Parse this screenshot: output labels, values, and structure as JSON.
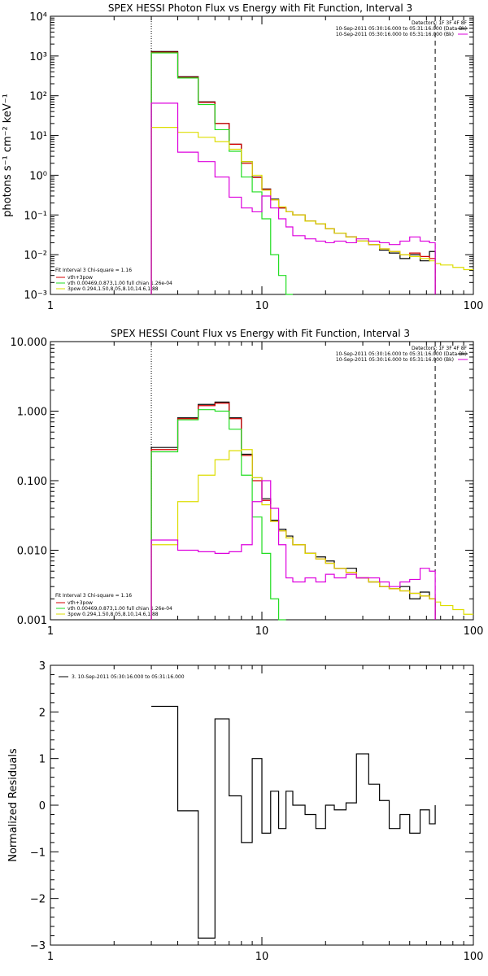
{
  "chart_data": [
    {
      "type": "line",
      "title": "SPEX HESSI Photon Flux vs Energy with Fit Function, Interval 3",
      "xlabel": "",
      "ylabel": "photons s⁻¹ cm⁻² keV⁻¹",
      "xscale": "log",
      "yscale": "log",
      "xlim": [
        1,
        100
      ],
      "ylim": [
        0.001,
        10000
      ],
      "x_ticks": [
        "1",
        "10",
        "100"
      ],
      "y_ticks": [
        "10⁻³",
        "10⁻²",
        "10⁻¹",
        "10⁰",
        "10¹",
        "10²",
        "10³",
        "10⁴"
      ],
      "vlines": [
        {
          "x": 3.0,
          "style": "dotted"
        },
        {
          "x": 66,
          "style": "dashed"
        }
      ],
      "legend_top_right": [
        "Detectors: 1F 3F 4F 8F",
        "10-Sep-2011 05:30:16.000 to 05:31:16.000 (Data-Bk)",
        "10-Sep-2011 05:30:16.000 to 05:31:16.000 (Bk)"
      ],
      "legend_bottom_left": [
        "Fit Interval 3   Chi-square = 1.16",
        "vth+3pow",
        "vth 0.00469,0.873,1.00  full chian 1.26e-04",
        "3pow 0.294,1.50,8.05,8.10,14.6,1.88"
      ],
      "bin_edges": [
        3.0,
        4.0,
        5.0,
        6.0,
        7.0,
        8.0,
        9.0,
        10.0,
        11.0,
        12.0,
        13.0,
        14.0,
        16.0,
        18.0,
        20.0,
        22.0,
        25.0,
        28.0,
        32.0,
        36.0,
        40.0,
        45.0,
        50.0,
        56.0,
        62.0,
        66.0,
        70.0,
        80.0,
        90.0,
        100.0
      ],
      "series": [
        {
          "name": "10-Sep-2011 05:30:16.000 to 05:31:16.000 (Data-Bk)",
          "color": "#000000",
          "values": [
            1300,
            300,
            70,
            20,
            6,
            2.2,
            0.9,
            0.45,
            0.25,
            0.15,
            0.12,
            0.1,
            0.07,
            0.06,
            0.045,
            0.035,
            0.028,
            0.022,
            0.018,
            0.013,
            0.011,
            0.008,
            0.01,
            0.007,
            0.012
          ]
        },
        {
          "name": "vth+3pow",
          "color": "#d40000",
          "values": [
            1250,
            290,
            68,
            20,
            6,
            2.0,
            0.88,
            0.44,
            0.24,
            0.15,
            0.12,
            0.1,
            0.07,
            0.06,
            0.045,
            0.035,
            0.028,
            0.022,
            0.018,
            0.014,
            0.012,
            0.01,
            0.011,
            0.009,
            0.008
          ]
        },
        {
          "name": "vth 0.00469,0.873,1.00  full chian 1.26e-04",
          "color": "#22dd22",
          "values": [
            1200,
            280,
            60,
            14,
            4,
            0.9,
            0.38,
            0.08,
            0.01,
            0.003,
            0.0008
          ]
        },
        {
          "name": "3pow 0.294,1.50,8.05,8.10,14.6,1.88",
          "color": "#dddd00",
          "values": [
            16,
            12,
            9,
            7,
            4.5,
            2.2,
            1.0,
            0.42,
            0.24,
            0.16,
            0.12,
            0.1,
            0.07,
            0.06,
            0.045,
            0.035,
            0.028,
            0.022,
            0.018,
            0.014,
            0.012,
            0.01,
            0.009,
            0.008,
            0.007,
            0.006,
            0.0055,
            0.0048,
            0.0042
          ]
        },
        {
          "name": "10-Sep-2011 05:30:16.000 to 05:31:16.000 (Bk)",
          "color": "#dd00dd",
          "values": [
            65,
            3.8,
            2.2,
            0.9,
            0.28,
            0.15,
            0.12,
            0.3,
            0.15,
            0.08,
            0.05,
            0.03,
            0.025,
            0.022,
            0.02,
            0.022,
            0.02,
            0.025,
            0.022,
            0.02,
            0.018,
            0.022,
            0.028,
            0.022,
            0.02
          ]
        }
      ]
    },
    {
      "type": "line",
      "title": "SPEX HESSI Count Flux vs Energy with Fit Function, Interval 3",
      "xlabel": "",
      "ylabel": "",
      "xscale": "log",
      "yscale": "log",
      "xlim": [
        1,
        100
      ],
      "ylim": [
        0.001,
        10
      ],
      "x_ticks": [
        "1",
        "10",
        "100"
      ],
      "y_ticks": [
        "0.001",
        "0.010",
        "0.100",
        "1.000",
        "10.000"
      ],
      "vlines": [
        {
          "x": 3.0,
          "style": "dotted"
        },
        {
          "x": 66,
          "style": "dashed"
        }
      ],
      "legend_top_right": [
        "Detectors: 1F 3F 4F 8F",
        "10-Sep-2011 05:30:16.000 to 05:31:16.000 (Data-Bk)",
        "10-Sep-2011 05:30:16.000 to 05:31:16.000 (Bk)"
      ],
      "legend_bottom_left": [
        "Fit Interval 3   Chi-square = 1.16",
        "vth+3pow",
        "vth 0.00469,0.873,1.00  full chian 1.26e-04",
        "3pow 0.294,1.50,8.05,8.10,14.6,1.88"
      ],
      "bin_edges": [
        3.0,
        4.0,
        5.0,
        6.0,
        7.0,
        8.0,
        9.0,
        10.0,
        11.0,
        12.0,
        13.0,
        14.0,
        16.0,
        18.0,
        20.0,
        22.0,
        25.0,
        28.0,
        32.0,
        36.0,
        40.0,
        45.0,
        50.0,
        56.0,
        62.0,
        66.0,
        70.0,
        80.0,
        90.0,
        100.0
      ],
      "series": [
        {
          "name": "10-Sep-2011 05:30:16.000 to 05:31:16.000 (Data-Bk)",
          "color": "#000000",
          "values": [
            0.3,
            0.8,
            1.25,
            1.35,
            0.8,
            0.24,
            0.11,
            0.055,
            0.027,
            0.02,
            0.016,
            0.012,
            0.009,
            0.008,
            0.007,
            0.0055,
            0.0055,
            0.004,
            0.0035,
            0.003,
            0.0028,
            0.003,
            0.002,
            0.0025,
            0.002
          ]
        },
        {
          "name": "vth+3pow",
          "color": "#d40000",
          "values": [
            0.28,
            0.78,
            1.2,
            1.3,
            0.78,
            0.23,
            0.1,
            0.052,
            0.026,
            0.019,
            0.015,
            0.012,
            0.009,
            0.0075,
            0.0065,
            0.0055,
            0.0048,
            0.004,
            0.0035,
            0.003,
            0.0028,
            0.0026,
            0.0024,
            0.0022,
            0.002
          ]
        },
        {
          "name": "vth 0.00469,0.873,1.00  full chian 1.26e-04",
          "color": "#22dd22",
          "values": [
            0.26,
            0.75,
            1.05,
            1.0,
            0.55,
            0.12,
            0.03,
            0.009,
            0.002,
            0.0005
          ]
        },
        {
          "name": "3pow 0.294,1.50,8.05,8.10,14.6,1.88",
          "color": "#dddd00",
          "values": [
            0.012,
            0.05,
            0.12,
            0.2,
            0.27,
            0.28,
            0.11,
            0.045,
            0.026,
            0.019,
            0.015,
            0.012,
            0.009,
            0.0075,
            0.0065,
            0.0055,
            0.0048,
            0.004,
            0.0035,
            0.003,
            0.0028,
            0.0026,
            0.0024,
            0.0022,
            0.002,
            0.0018,
            0.0016,
            0.0014,
            0.0012
          ]
        },
        {
          "name": "10-Sep-2011 05:30:16.000 to 05:31:16.000 (Bk)",
          "color": "#dd00dd",
          "values": [
            0.014,
            0.01,
            0.0095,
            0.009,
            0.0095,
            0.012,
            0.05,
            0.1,
            0.04,
            0.012,
            0.004,
            0.0035,
            0.004,
            0.0035,
            0.0045,
            0.004,
            0.0045,
            0.004,
            0.004,
            0.0035,
            0.003,
            0.0035,
            0.0038,
            0.0055,
            0.005
          ]
        }
      ]
    },
    {
      "type": "line",
      "title": "",
      "xlabel": "",
      "ylabel": "Normalized Residuals",
      "xscale": "log",
      "yscale": "linear",
      "xlim": [
        1,
        100
      ],
      "ylim": [
        -3,
        3
      ],
      "x_ticks": [
        "1",
        "10",
        "100"
      ],
      "y_ticks": [
        "−3",
        "−2",
        "−1",
        "0",
        "1",
        "2",
        "3"
      ],
      "legend": [
        "3. 10-Sep-2011 05:30:16.000 to 05:31:16.000"
      ],
      "bin_edges": [
        3.0,
        4.0,
        5.0,
        6.0,
        7.0,
        8.0,
        9.0,
        10.0,
        11.0,
        12.0,
        13.0,
        14.0,
        16.0,
        18.0,
        20.0,
        22.0,
        25.0,
        28.0,
        32.0,
        36.0,
        40.0,
        45.0,
        50.0,
        56.0,
        62.0,
        66.0
      ],
      "series": [
        {
          "name": "3. 10-Sep-2011 05:30:16.000 to 05:31:16.000",
          "color": "#000000",
          "values": [
            2.12,
            -0.12,
            -2.85,
            1.85,
            0.2,
            -0.8,
            1.0,
            -0.6,
            0.3,
            -0.5,
            0.3,
            0,
            -0.2,
            -0.5,
            0,
            -0.1,
            0.05,
            1.1,
            0.45,
            0.1,
            -0.5,
            -0.2,
            -0.6,
            -0.1,
            -0.4
          ]
        }
      ]
    }
  ]
}
